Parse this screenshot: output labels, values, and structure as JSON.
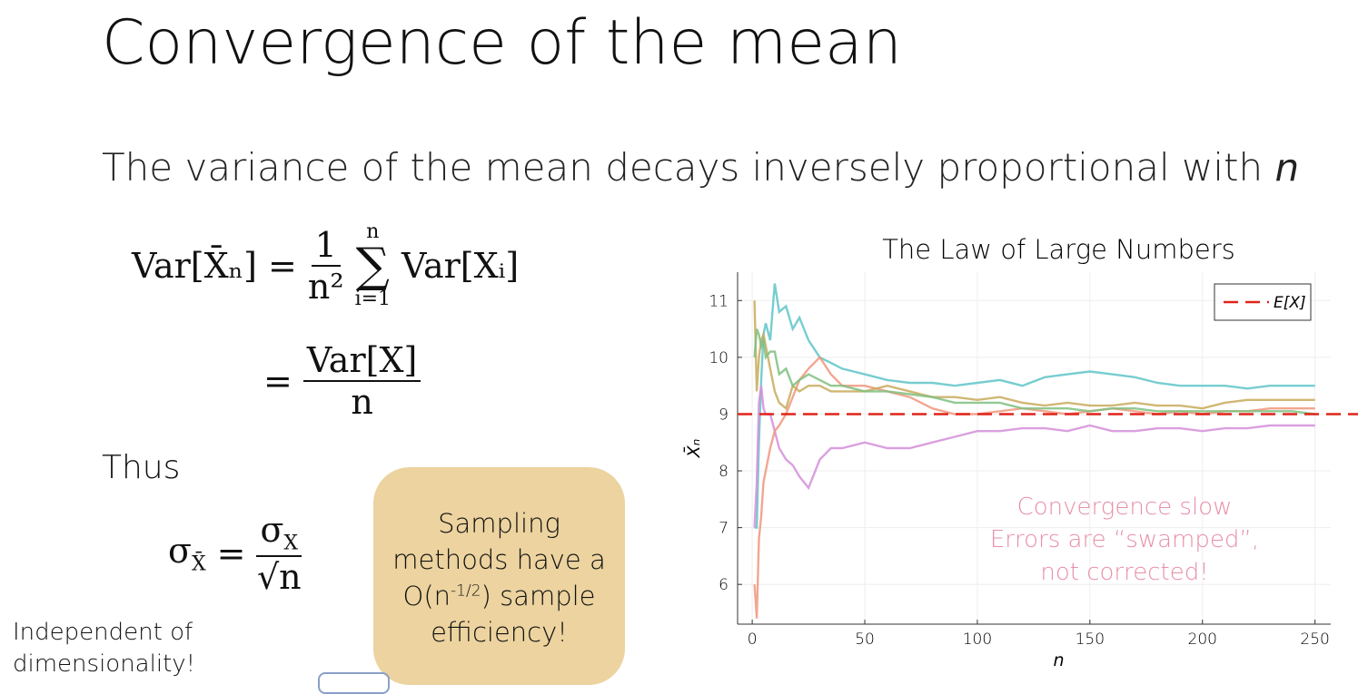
{
  "header": {
    "title": "Convergence of the mean"
  },
  "subtitle": {
    "text": "The variance of the mean decays inversely proportional with",
    "var": "n"
  },
  "equations": {
    "eq1": {
      "left": "Var[X̄ₙ] =",
      "num": "1",
      "den": "n²",
      "sum_top": "n",
      "sum_symbol": "∑",
      "sum_bottom": "i=1",
      "right": "Var[Xᵢ]"
    },
    "eq2": {
      "left": "=",
      "num": "Var[X]",
      "den": "n"
    },
    "thus": "Thus",
    "eq3": {
      "left": "σ",
      "left_sub": "X̄",
      "eq": "=",
      "num": "σ",
      "num_sub": "X",
      "den": "√n"
    }
  },
  "note": {
    "before": "Sampling methods have a O(n",
    "sup": "-1/2",
    "after": ") sample efficiency!"
  },
  "footnote": "Independent of dimensionality!",
  "chart_data": {
    "type": "line",
    "title": "The Law of Large Numbers",
    "xlabel": "n",
    "ylabel": "X̄ₙ",
    "x": [
      1,
      2,
      3,
      4,
      5,
      6,
      8,
      10,
      12,
      15,
      18,
      21,
      25,
      30,
      35,
      40,
      50,
      60,
      70,
      80,
      90,
      100,
      110,
      120,
      130,
      140,
      150,
      160,
      170,
      180,
      190,
      200,
      210,
      220,
      230,
      240,
      250
    ],
    "series": [
      {
        "color": "#5fc4c8",
        "values": [
          7,
          7,
          8.5,
          9.6,
          10.4,
          10.6,
          10.3,
          11.3,
          10.8,
          10.9,
          10.5,
          10.7,
          10.3,
          10.0,
          9.9,
          9.8,
          9.7,
          9.6,
          9.55,
          9.55,
          9.5,
          9.55,
          9.6,
          9.5,
          9.65,
          9.7,
          9.75,
          9.7,
          9.65,
          9.55,
          9.5,
          9.5,
          9.5,
          9.45,
          9.5,
          9.5,
          9.5
        ]
      },
      {
        "color": "#d48fd9",
        "values": [
          7,
          7.8,
          9.2,
          9.5,
          9.1,
          9.0,
          9.0,
          8.7,
          8.4,
          8.2,
          8.1,
          7.9,
          7.7,
          8.2,
          8.4,
          8.4,
          8.5,
          8.4,
          8.4,
          8.5,
          8.6,
          8.7,
          8.7,
          8.75,
          8.75,
          8.7,
          8.8,
          8.7,
          8.7,
          8.75,
          8.75,
          8.7,
          8.75,
          8.75,
          8.8,
          8.8,
          8.8
        ]
      },
      {
        "color": "#f0977e",
        "values": [
          6,
          5.4,
          6.8,
          7.2,
          7.8,
          8.0,
          8.4,
          8.7,
          8.8,
          9.0,
          9.3,
          9.6,
          9.8,
          10.0,
          9.7,
          9.5,
          9.5,
          9.4,
          9.3,
          9.1,
          9.0,
          9.0,
          9.05,
          9.1,
          9.05,
          9.0,
          9.05,
          9.1,
          9.05,
          9.0,
          9.05,
          9.0,
          9.05,
          9.05,
          9.1,
          9.1,
          9.1
        ]
      },
      {
        "color": "#c8aa5c",
        "values": [
          11,
          9.4,
          10.0,
          10.3,
          10.4,
          10.2,
          9.8,
          9.4,
          9.2,
          9.1,
          9.5,
          9.4,
          9.5,
          9.5,
          9.4,
          9.4,
          9.4,
          9.5,
          9.4,
          9.3,
          9.3,
          9.25,
          9.3,
          9.2,
          9.15,
          9.2,
          9.15,
          9.15,
          9.2,
          9.15,
          9.15,
          9.1,
          9.2,
          9.25,
          9.25,
          9.25,
          9.25
        ]
      },
      {
        "color": "#7fbf7f",
        "values": [
          10.0,
          10.5,
          10.4,
          10.2,
          10.3,
          10.0,
          10.1,
          10.1,
          9.7,
          9.8,
          9.5,
          9.6,
          9.7,
          9.6,
          9.5,
          9.5,
          9.4,
          9.4,
          9.35,
          9.3,
          9.2,
          9.2,
          9.2,
          9.1,
          9.1,
          9.1,
          9.05,
          9.1,
          9.1,
          9.05,
          9.05,
          9.05,
          9.05,
          9.05,
          9.05,
          9.05,
          9.0
        ]
      }
    ],
    "hline": {
      "name": "E[X]",
      "value": 9,
      "color": "#e0241b"
    },
    "xlim": [
      -6.5,
      257
    ],
    "ylim": [
      5.3,
      11.5
    ],
    "xticks": [
      0,
      50,
      100,
      150,
      200,
      250
    ],
    "yticks": [
      6,
      7,
      8,
      9,
      10,
      11
    ],
    "grid": true,
    "legend": "upper right",
    "annotation": {
      "lines": [
        "Convergence slow",
        "Errors are “swamped”,",
        "not corrected!"
      ],
      "color": "#e88fa8"
    }
  }
}
